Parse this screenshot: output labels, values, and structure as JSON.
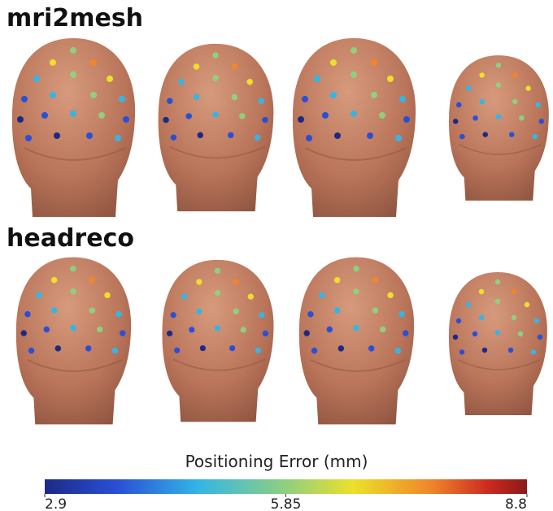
{
  "rows": [
    {
      "label": "mri2mesh"
    },
    {
      "label": "headreco"
    }
  ],
  "colorbar": {
    "title": "Positioning Error (mm)",
    "ticks": [
      2.9,
      5.85,
      8.8
    ]
  }
}
